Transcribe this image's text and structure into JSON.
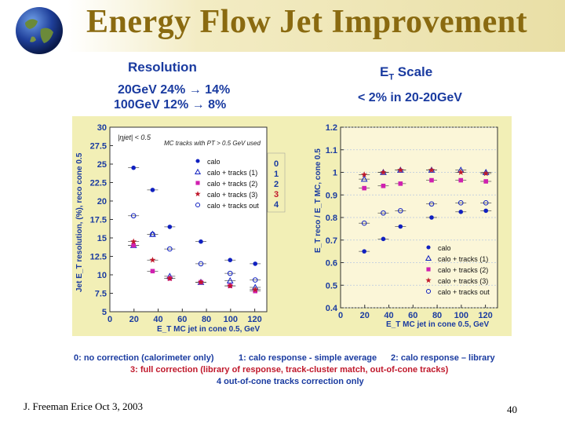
{
  "slide": {
    "title": "Energy Flow Jet Improvement",
    "footer": "J. Freeman   Erice  Oct 3, 2003",
    "page_number": "40",
    "resolution_heading": "Resolution",
    "resolution_line1": "20GeV  24% → 14%",
    "resolution_line2": "100GeV  12% →  8%",
    "scale_heading": "E",
    "scale_heading_sub": "T",
    "scale_heading_rest": " Scale",
    "scale_line1": "< 2% in 20-20GeV",
    "notes": {
      "n0": "0:  no correction (calorimeter only)",
      "n1": "1:  calo response - simple average",
      "n2": "2:  calo response – library",
      "n3": "3:  full correction (library of response, track-cluster match, out-of-cone tracks)",
      "n4": "4    out-of-cone tracks correction only"
    },
    "index_box": [
      "0",
      "1",
      "2",
      "3",
      "4"
    ]
  },
  "chart_data": [
    {
      "type": "scatter",
      "title": "Resolution",
      "xlabel": "E_T MC jet in cone 0.5, GeV",
      "ylabel": "Jet E_T resolution, (%), reco cone 0.5",
      "xlim": [
        0,
        130
      ],
      "ylim": [
        5,
        30
      ],
      "xticks": [
        "0",
        "20",
        "40",
        "60",
        "80",
        "100",
        "120"
      ],
      "yticks": [
        "5",
        "7.5",
        "10",
        "12.5",
        "15",
        "17.5",
        "20",
        "22.5",
        "25",
        "27.5",
        "30"
      ],
      "annotations": [
        "|ηjet| < 0.5",
        "MC tracks with PT > 0.5 GeV used"
      ],
      "legend": [
        "calo",
        "calo + tracks (1)",
        "calo + tracks (2)",
        "calo + tracks (3)",
        "calo + tracks out"
      ],
      "series": [
        {
          "name": "calo",
          "marker": "dot",
          "color": "#1020c0",
          "x": [
            20,
            35,
            50,
            75,
            100,
            120
          ],
          "y": [
            24.5,
            21.5,
            16.5,
            14.5,
            12,
            11.5
          ]
        },
        {
          "name": "calo + tracks (1)",
          "marker": "triangle",
          "color": "#1020c0",
          "x": [
            20,
            35,
            50,
            75,
            100,
            120
          ],
          "y": [
            14,
            15.5,
            9.8,
            9,
            9.2,
            8.3
          ]
        },
        {
          "name": "calo + tracks (2)",
          "marker": "square",
          "color": "#d020b0",
          "x": [
            20,
            35,
            50,
            75,
            100,
            120
          ],
          "y": [
            14,
            10.5,
            9.5,
            9,
            8.5,
            7.8
          ]
        },
        {
          "name": "calo + tracks (3)",
          "marker": "star",
          "color": "#c0182b",
          "x": [
            20,
            35,
            50,
            75,
            100,
            120
          ],
          "y": [
            14.5,
            12,
            9.5,
            9,
            8.5,
            8
          ]
        },
        {
          "name": "calo + tracks out",
          "marker": "circle",
          "color": "#1020c0",
          "x": [
            20,
            35,
            50,
            75,
            100,
            120
          ],
          "y": [
            18,
            15.5,
            13.5,
            11.5,
            10.2,
            9.3
          ]
        }
      ]
    },
    {
      "type": "scatter",
      "title": "ET Scale",
      "xlabel": "E_T MC jet in cone 0.5, GeV",
      "ylabel": "E_T reco / E_T MC, cone 0.5",
      "xlim": [
        0,
        130
      ],
      "ylim": [
        0.4,
        1.2
      ],
      "xticks": [
        "0",
        "20",
        "40",
        "60",
        "80",
        "100",
        "120"
      ],
      "yticks": [
        "0.4",
        "0.5",
        "0.6",
        "0.7",
        "0.8",
        "0.9",
        "1",
        "1.1",
        "1.2"
      ],
      "legend": [
        "calo",
        "calo + tracks (1)",
        "calo + tracks (2)",
        "calo + tracks (3)",
        "calo + tracks out"
      ],
      "series": [
        {
          "name": "calo",
          "marker": "dot",
          "color": "#1020c0",
          "x": [
            20,
            35,
            50,
            75,
            100,
            120
          ],
          "y": [
            0.65,
            0.705,
            0.76,
            0.8,
            0.825,
            0.83
          ]
        },
        {
          "name": "calo + tracks (1)",
          "marker": "triangle",
          "color": "#1020c0",
          "x": [
            20,
            35,
            50,
            75,
            100,
            120
          ],
          "y": [
            0.97,
            1.0,
            1.01,
            1.01,
            1.01,
            1.0
          ]
        },
        {
          "name": "calo + tracks (2)",
          "marker": "square",
          "color": "#d020b0",
          "x": [
            20,
            35,
            50,
            75,
            100,
            120
          ],
          "y": [
            0.93,
            0.94,
            0.95,
            0.965,
            0.965,
            0.96
          ]
        },
        {
          "name": "calo + tracks (3)",
          "marker": "star",
          "color": "#c0182b",
          "x": [
            20,
            35,
            50,
            75,
            100,
            120
          ],
          "y": [
            0.99,
            1.0,
            1.01,
            1.01,
            1.0,
            0.995
          ]
        },
        {
          "name": "calo + tracks out",
          "marker": "circle",
          "color": "#1020c0",
          "x": [
            20,
            35,
            50,
            75,
            100,
            120
          ],
          "y": [
            0.775,
            0.82,
            0.83,
            0.86,
            0.865,
            0.865
          ]
        }
      ]
    }
  ]
}
